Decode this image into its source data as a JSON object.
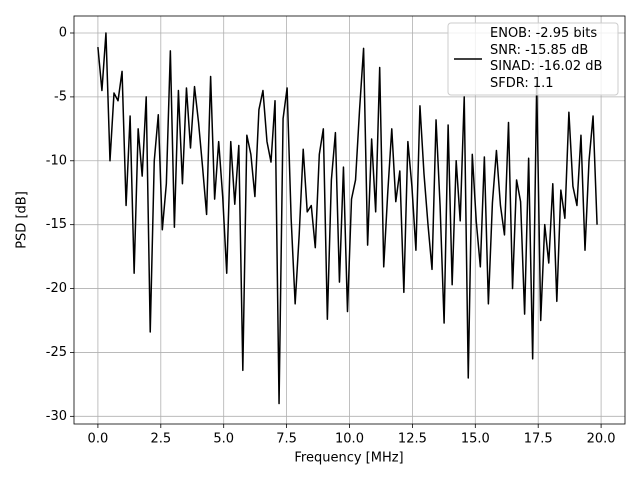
{
  "chart_data": {
    "type": "line",
    "xlabel": "Frequency [MHz]",
    "ylabel": "PSD [dB]",
    "xlim": [
      -0.95,
      20.95
    ],
    "ylim": [
      -30.6,
      1.33
    ],
    "xticks": [
      {
        "value": 0,
        "label": "0.0"
      },
      2.5,
      {
        "value": 5,
        "label": "5.0"
      },
      7.5,
      {
        "value": 10,
        "label": "10.0"
      },
      12.5,
      {
        "value": 15,
        "label": "15.0"
      },
      17.5,
      {
        "value": 20,
        "label": "20.0"
      }
    ],
    "yticks": [
      0,
      -5,
      -10,
      -15,
      -20,
      -25,
      -30
    ],
    "grid": true,
    "legend": "upper right",
    "x": [
      0,
      0.16,
      0.32,
      0.48,
      0.64,
      0.8,
      0.96,
      1.12,
      1.28,
      1.44,
      1.6,
      1.76,
      1.92,
      2.08,
      2.24,
      2.4,
      2.56,
      2.72,
      2.88,
      3.04,
      3.2,
      3.36,
      3.52,
      3.68,
      3.84,
      4,
      4.16,
      4.32,
      4.48,
      4.64,
      4.8,
      4.96,
      5.12,
      5.28,
      5.44,
      5.6,
      5.76,
      5.92,
      6.08,
      6.24,
      6.4,
      6.56,
      6.72,
      6.88,
      7.04,
      7.2,
      7.36,
      7.52,
      7.68,
      7.84,
      8,
      8.16,
      8.32,
      8.48,
      8.64,
      8.8,
      8.96,
      9.12,
      9.28,
      9.44,
      9.6,
      9.76,
      9.92,
      10.08,
      10.24,
      10.4,
      10.56,
      10.72,
      10.88,
      11.04,
      11.2,
      11.36,
      11.52,
      11.68,
      11.84,
      12,
      12.16,
      12.32,
      12.48,
      12.64,
      12.8,
      12.96,
      13.12,
      13.28,
      13.44,
      13.6,
      13.76,
      13.92,
      14.08,
      14.24,
      14.4,
      14.56,
      14.72,
      14.88,
      15.04,
      15.2,
      15.36,
      15.52,
      15.68,
      15.84,
      16,
      16.16,
      16.32,
      16.48,
      16.64,
      16.8,
      16.96,
      17.12,
      17.28,
      17.44,
      17.6,
      17.76,
      17.92,
      18.08,
      18.24,
      18.4,
      18.56,
      18.72,
      18.88,
      19.04,
      19.2,
      19.36,
      19.52,
      19.68,
      19.84
    ],
    "series": [
      {
        "name": "ENOB: -2.95 bits\nSNR: -15.85 dB\nSINAD: -16.02 dB\nSFDR: 1.1",
        "color": "#000000",
        "values": [
          -1.1,
          -4.5,
          0,
          -10,
          -4.7,
          -5.3,
          -3,
          -13.5,
          -6.5,
          -18.8,
          -7.5,
          -11.2,
          -5,
          -23.4,
          -10,
          -6.4,
          -15.4,
          -11.8,
          -1.4,
          -15.2,
          -4.5,
          -11.8,
          -4.3,
          -9,
          -4.2,
          -7,
          -10.5,
          -14.2,
          -3.4,
          -13,
          -8.5,
          -12.8,
          -18.8,
          -8.5,
          -13.4,
          -8.8,
          -26.4,
          -8,
          -9.5,
          -12.8,
          -6,
          -4.5,
          -8.5,
          -10.1,
          -5.3,
          -29,
          -6.7,
          -4.3,
          -14.5,
          -21.2,
          -15.8,
          -9.1,
          -14,
          -13.5,
          -16.8,
          -9.5,
          -7.5,
          -22.4,
          -11.5,
          -7.8,
          -19.5,
          -10.5,
          -21.8,
          -13,
          -11.5,
          -6,
          -1.2,
          -16.6,
          -8.3,
          -14,
          -2.7,
          -18.3,
          -12.5,
          -7.5,
          -13.2,
          -10.8,
          -20.3,
          -8.5,
          -12,
          -17,
          -5.7,
          -11,
          -15,
          -18.5,
          -6.8,
          -13.5,
          -22.7,
          -7.2,
          -19.7,
          -10,
          -14.7,
          -5,
          -27,
          -9.5,
          -14.8,
          -18.3,
          -9.7,
          -21.2,
          -13.3,
          -9.2,
          -13.5,
          -15.8,
          -7,
          -20,
          -11.5,
          -13.2,
          -22,
          -9.8,
          -25.5,
          -4,
          -22.5,
          -15,
          -18,
          -11.8,
          -21,
          -12.3,
          -14.5,
          -6.2,
          -12,
          -13.5,
          -8,
          -17,
          -10,
          -6.5,
          -15
        ]
      }
    ]
  }
}
